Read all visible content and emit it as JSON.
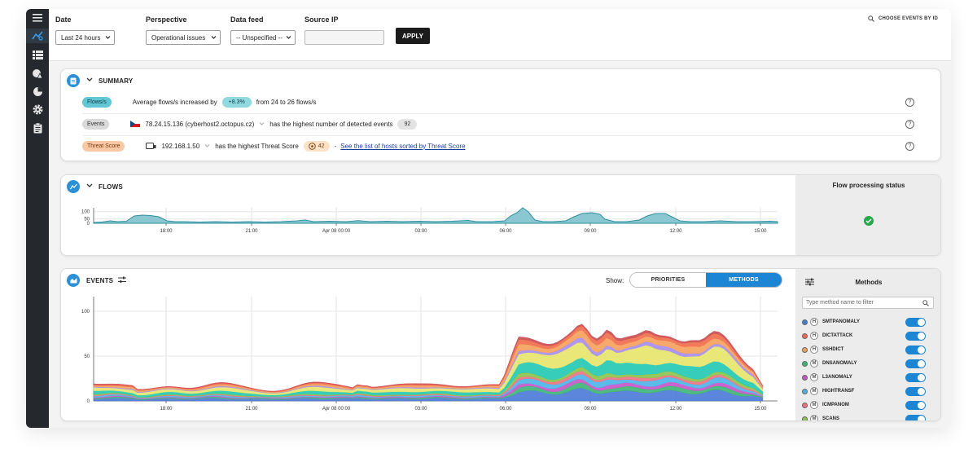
{
  "filters": {
    "date": {
      "label": "Date",
      "value": "Last 24 hours"
    },
    "perspective": {
      "label": "Perspective",
      "value": "Operational issues"
    },
    "data_feed": {
      "label": "Data feed",
      "value": "-- Unspecified --"
    },
    "source_ip": {
      "label": "Source IP",
      "value": ""
    },
    "apply_label": "APPLY",
    "choose_events_label": "CHOOSE EVENTS BY ID"
  },
  "sidebar": {
    "icons": [
      "menu-icon",
      "dashboard-icon",
      "list-icon",
      "map-icon",
      "pie-icon",
      "settings-icon",
      "clipboard-icon"
    ]
  },
  "summary": {
    "title": "SUMMARY",
    "rows": [
      {
        "tag": "Flows/s",
        "text": "Average flows/s increased by",
        "value": "+8.3%",
        "text2": "from 24 to 26 flows/s"
      },
      {
        "tag": "Events",
        "host": "78.24.15.136 (cyberhost2.octopus.cz)",
        "text": "has the highest number of detected events",
        "value": "92"
      },
      {
        "tag": "Threat Score",
        "host": "192.168.1.50",
        "text": "has the highest Threat Score",
        "value": "42",
        "sep": "-",
        "link": "See the list of hosts sorted by Threat Score"
      }
    ]
  },
  "flows": {
    "title": "FLOWS",
    "status_title": "Flow processing status",
    "y_ticks": [
      "100",
      "50",
      "0"
    ],
    "x_ticks": [
      "18:00",
      "21:00",
      "Apr 08 00:00",
      "03:00",
      "06:00",
      "09:00",
      "12:00",
      "15:00"
    ]
  },
  "events": {
    "title": "EVENTS",
    "show_label": "Show:",
    "view_options": [
      "PRIORITIES",
      "METHODS"
    ],
    "active_view": "METHODS",
    "y_ticks": [
      "100",
      "50",
      "0"
    ],
    "x_ticks": [
      "18:00",
      "21:00",
      "Apr 08 00:00",
      "03:00",
      "06:00",
      "09:00",
      "12:00",
      "15:00"
    ]
  },
  "methods_panel": {
    "title": "Methods",
    "filter_placeholder": "Type method name to filter",
    "items": [
      {
        "name": "SMTPANOMALY",
        "letter": "H",
        "color": "#3a7fd8",
        "enabled": true
      },
      {
        "name": "DICTATTACK",
        "letter": "H",
        "color": "#f06b4b",
        "enabled": true
      },
      {
        "name": "SSHDICT",
        "letter": "H",
        "color": "#f5a05a",
        "enabled": true
      },
      {
        "name": "DNSANOMALY",
        "letter": "M",
        "color": "#3bb574",
        "enabled": true
      },
      {
        "name": "L3ANOMALY",
        "letter": "M",
        "color": "#c853c8",
        "enabled": true
      },
      {
        "name": "HIGHTRANSF",
        "letter": "M",
        "color": "#4ab4e8",
        "enabled": true
      },
      {
        "name": "ICMPANOM",
        "letter": "M",
        "color": "#f07080",
        "enabled": true
      },
      {
        "name": "SCANS",
        "letter": "M",
        "color": "#8bc34a",
        "enabled": true
      }
    ]
  },
  "colors": {
    "accent": "#1c85d4",
    "flows_fill": "#4aa8b8",
    "tag_flows": "#62c6d4",
    "tag_events": "#d9d9d9",
    "tag_threat": "#f7b58c",
    "ok_green": "#27a84a"
  }
}
